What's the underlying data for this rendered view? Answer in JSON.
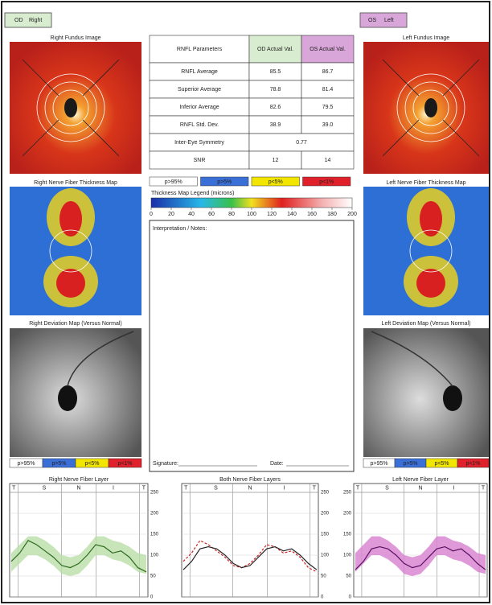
{
  "header": {
    "od_label": "OD",
    "od_side": "Right",
    "os_label": "OS",
    "os_side": "Left"
  },
  "right_eye": {
    "fundus_title": "Right Fundus Image",
    "thickness_title": "Right Nerve Fiber Thickness Map",
    "deviation_title": "Right Deviation Map (Versus Normal)"
  },
  "left_eye": {
    "fundus_title": "Left Fundus Image",
    "thickness_title": "Left Nerve Fiber Thickness Map",
    "deviation_title": "Left Deviation Map (Versus Normal)"
  },
  "table": {
    "header": [
      "RNFL Parameters",
      "OD Actual Val.",
      "OS Actual Val."
    ],
    "rows": [
      [
        "RNFL Average",
        "85.5",
        "86.7"
      ],
      [
        "Superior Average",
        "78.8",
        "81.4"
      ],
      [
        "Inferior Average",
        "82.6",
        "79.5"
      ],
      [
        "RNFL Std. Dev.",
        "38.9",
        "39.0"
      ],
      [
        "Inter-Eye Symmetry",
        "0.77"
      ],
      [
        "SNR",
        "12",
        "14"
      ]
    ]
  },
  "percentile_legend": {
    "labels": [
      "p>95%",
      "p>5%",
      "p<5%",
      "p<1%"
    ],
    "colors": [
      "#ffffff",
      "#3a6fd8",
      "#f2e600",
      "#e0202a"
    ]
  },
  "thickness_legend": {
    "title": "Thickness Map Legend (microns)",
    "ticks": [
      0,
      20,
      40,
      60,
      80,
      100,
      120,
      140,
      160,
      180,
      200
    ]
  },
  "notes": {
    "title": "Interpretation / Notes:",
    "signature": "Signature:",
    "date": "Date:"
  },
  "graphs": [
    {
      "title": "Right Nerve Fiber Layer",
      "xlabels": [
        "T",
        "S",
        "N",
        "I",
        "T"
      ],
      "ylim": [
        0,
        250
      ],
      "yticks": [
        0,
        50,
        100,
        150,
        200,
        250
      ],
      "band": {
        "color": "#b9dfa8",
        "lower": [
          60,
          80,
          100,
          100,
          90,
          75,
          55,
          50,
          55,
          75,
          100,
          100,
          90,
          85,
          75,
          60,
          55
        ],
        "upper": [
          105,
          125,
          145,
          145,
          135,
          120,
          100,
          95,
          100,
          120,
          145,
          145,
          135,
          130,
          120,
          105,
          100
        ]
      },
      "series": [
        {
          "color": "#2f6b1f",
          "dash": false,
          "values": [
            85,
            105,
            135,
            125,
            110,
            95,
            75,
            70,
            80,
            100,
            125,
            120,
            105,
            110,
            95,
            70,
            60
          ]
        }
      ]
    },
    {
      "title": "Both Nerve Fiber Layers",
      "xlabels": [
        "T",
        "S",
        "N",
        "I",
        "T"
      ],
      "ylim": [
        0,
        250
      ],
      "yticks": [
        0,
        50,
        100,
        150,
        200,
        250
      ],
      "series": [
        {
          "color": "#cc2222",
          "dash": true,
          "values": [
            85,
            105,
            135,
            125,
            110,
            95,
            75,
            70,
            80,
            100,
            125,
            120,
            105,
            110,
            95,
            70,
            60
          ]
        },
        {
          "color": "#222222",
          "dash": false,
          "values": [
            65,
            85,
            115,
            120,
            115,
            100,
            80,
            70,
            75,
            95,
            115,
            120,
            110,
            115,
            100,
            80,
            65
          ]
        }
      ]
    },
    {
      "title": "Left Nerve Fiber Layer",
      "xlabels": [
        "T",
        "S",
        "N",
        "I",
        "T"
      ],
      "ylim": [
        0,
        250
      ],
      "yticks": [
        0,
        50,
        100,
        150,
        200,
        250
      ],
      "band": {
        "color": "#d77fd0",
        "lower": [
          60,
          80,
          100,
          100,
          90,
          75,
          55,
          50,
          55,
          75,
          100,
          100,
          90,
          85,
          75,
          60,
          55
        ],
        "upper": [
          105,
          125,
          145,
          145,
          135,
          120,
          100,
          95,
          100,
          120,
          145,
          145,
          135,
          130,
          120,
          105,
          100
        ]
      },
      "series": [
        {
          "color": "#5a1060",
          "dash": false,
          "values": [
            65,
            85,
            115,
            120,
            115,
            100,
            80,
            70,
            75,
            95,
            115,
            120,
            110,
            115,
            100,
            80,
            65
          ]
        }
      ]
    }
  ]
}
